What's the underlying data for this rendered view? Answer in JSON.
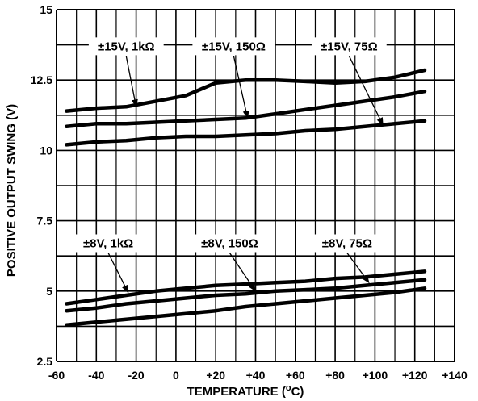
{
  "chart_data": {
    "type": "line",
    "title": "",
    "xlabel": "TEMPERATURE (",
    "xlabel_unit_superscript": "o",
    "xlabel_unit_suffix": "C)",
    "ylabel": "POSITIVE OUTPUT SWING (V)",
    "xlim": [
      -60,
      140
    ],
    "ylim": [
      2.5,
      15
    ],
    "x_ticks": [
      -60,
      -40,
      -20,
      0,
      20,
      40,
      60,
      80,
      100,
      120,
      140
    ],
    "x_tick_labels": [
      "-60",
      "-40",
      "-20",
      "0",
      "+20",
      "+40",
      "+60",
      "+80",
      "+100",
      "+120",
      "+140"
    ],
    "y_ticks": [
      2.5,
      5,
      7.5,
      10,
      12.5,
      15
    ],
    "y_tick_labels": [
      "2.5",
      "5",
      "7.5",
      "10",
      "12.5",
      "15"
    ],
    "grid": true,
    "legend": "none",
    "line_color": "#000000",
    "series": [
      {
        "name": "±15V, 1kΩ",
        "x": [
          -55,
          -40,
          -25,
          -10,
          5,
          20,
          35,
          50,
          65,
          80,
          95,
          110,
          125
        ],
        "y": [
          11.4,
          11.5,
          11.55,
          11.75,
          11.95,
          12.4,
          12.5,
          12.5,
          12.45,
          12.4,
          12.45,
          12.6,
          12.85
        ]
      },
      {
        "name": "±15V, 150Ω",
        "x": [
          -55,
          -40,
          -25,
          -10,
          5,
          20,
          35,
          50,
          65,
          80,
          95,
          110,
          125
        ],
        "y": [
          10.85,
          10.95,
          10.95,
          11.0,
          11.05,
          11.1,
          11.15,
          11.3,
          11.45,
          11.6,
          11.75,
          11.9,
          12.1
        ]
      },
      {
        "name": "±15V, 75Ω",
        "x": [
          -55,
          -40,
          -25,
          -10,
          5,
          20,
          35,
          50,
          65,
          80,
          95,
          110,
          125
        ],
        "y": [
          10.2,
          10.3,
          10.35,
          10.45,
          10.5,
          10.5,
          10.55,
          10.6,
          10.7,
          10.75,
          10.85,
          10.95,
          11.05
        ]
      },
      {
        "name": "±8V, 1kΩ",
        "x": [
          -55,
          -40,
          -25,
          -10,
          5,
          20,
          35,
          50,
          65,
          80,
          95,
          110,
          125
        ],
        "y": [
          4.55,
          4.7,
          4.85,
          5.0,
          5.1,
          5.2,
          5.25,
          5.3,
          5.35,
          5.45,
          5.5,
          5.6,
          5.7
        ]
      },
      {
        "name": "±8V, 150Ω",
        "x": [
          -55,
          -40,
          -25,
          -10,
          5,
          20,
          35,
          50,
          65,
          80,
          95,
          110,
          125
        ],
        "y": [
          4.3,
          4.4,
          4.55,
          4.65,
          4.75,
          4.85,
          4.9,
          5.0,
          5.05,
          5.1,
          5.2,
          5.3,
          5.4
        ]
      },
      {
        "name": "±8V, 75Ω",
        "x": [
          -55,
          -40,
          -25,
          -10,
          5,
          20,
          35,
          50,
          65,
          80,
          95,
          110,
          125
        ],
        "y": [
          3.8,
          3.9,
          4.0,
          4.1,
          4.2,
          4.3,
          4.45,
          4.55,
          4.65,
          4.75,
          4.85,
          4.95,
          5.1
        ]
      }
    ],
    "annotations": [
      {
        "text": "±15V, 1kΩ",
        "x": -25,
        "y": 13.7,
        "arrow_to": [
          -20,
          11.55
        ]
      },
      {
        "text": "±15V, 150Ω",
        "x": 29,
        "y": 13.7,
        "arrow_to": [
          36,
          11.15
        ]
      },
      {
        "text": "±15V, 75Ω",
        "x": 87,
        "y": 13.7,
        "arrow_to": [
          104,
          10.9
        ]
      },
      {
        "text": "±8V, 1kΩ",
        "x": -34,
        "y": 6.7,
        "arrow_to": [
          -24,
          4.95
        ]
      },
      {
        "text": "±8V, 150Ω",
        "x": 27,
        "y": 6.7,
        "arrow_to": [
          40,
          5.0
        ]
      },
      {
        "text": "±8V, 75Ω",
        "x": 86,
        "y": 6.7,
        "arrow_to": [
          97,
          5.3
        ]
      }
    ]
  }
}
